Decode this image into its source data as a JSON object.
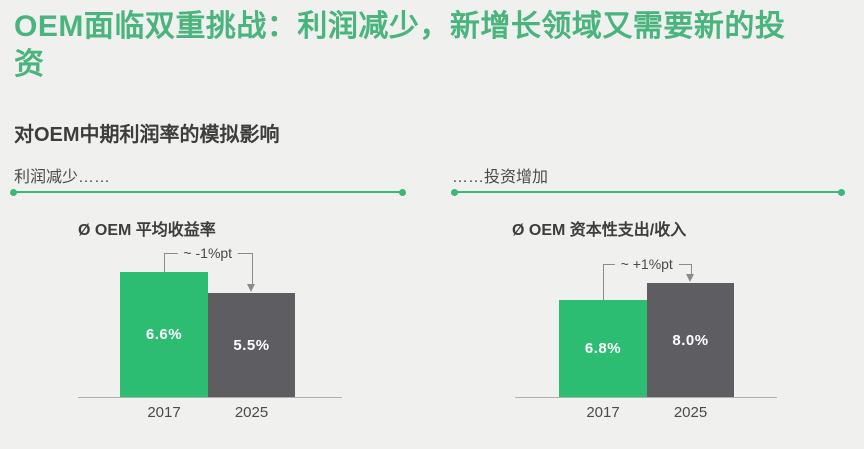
{
  "slide": {
    "title": "OEM面临双重挑战：利润减少，新增长领域又需要新的投资",
    "subtitle": "对OEM中期利润率的模拟影响"
  },
  "sections": [
    {
      "label": "利润减少……"
    },
    {
      "label": "……投资增加"
    }
  ],
  "colors": {
    "background": "#f0f0ee",
    "title_green": "#4ab47e",
    "accent_green": "#2dbd72",
    "bar_gray": "#5e5d62",
    "divider_green": "#3bb878"
  },
  "chart_data": [
    {
      "type": "bar",
      "title": "Ø OEM 平均收益率",
      "categories": [
        "2017",
        "2025"
      ],
      "values": [
        6.6,
        5.5
      ],
      "value_labels": [
        "6.6%",
        "5.5%"
      ],
      "annotation": "~ -1%pt",
      "series_colors": [
        "#2dbd72",
        "#5e5d62"
      ],
      "xlabel": "",
      "ylabel": "",
      "axis_visible": false,
      "grid": false,
      "legend": "none"
    },
    {
      "type": "bar",
      "title": "Ø OEM 资本性支出/收入",
      "categories": [
        "2017",
        "2025"
      ],
      "values": [
        6.8,
        8.0
      ],
      "value_labels": [
        "6.8%",
        "8.0%"
      ],
      "annotation": "~ +1%pt",
      "series_colors": [
        "#2dbd72",
        "#5e5d62"
      ],
      "xlabel": "",
      "ylabel": "",
      "axis_visible": false,
      "grid": false,
      "legend": "none"
    }
  ]
}
